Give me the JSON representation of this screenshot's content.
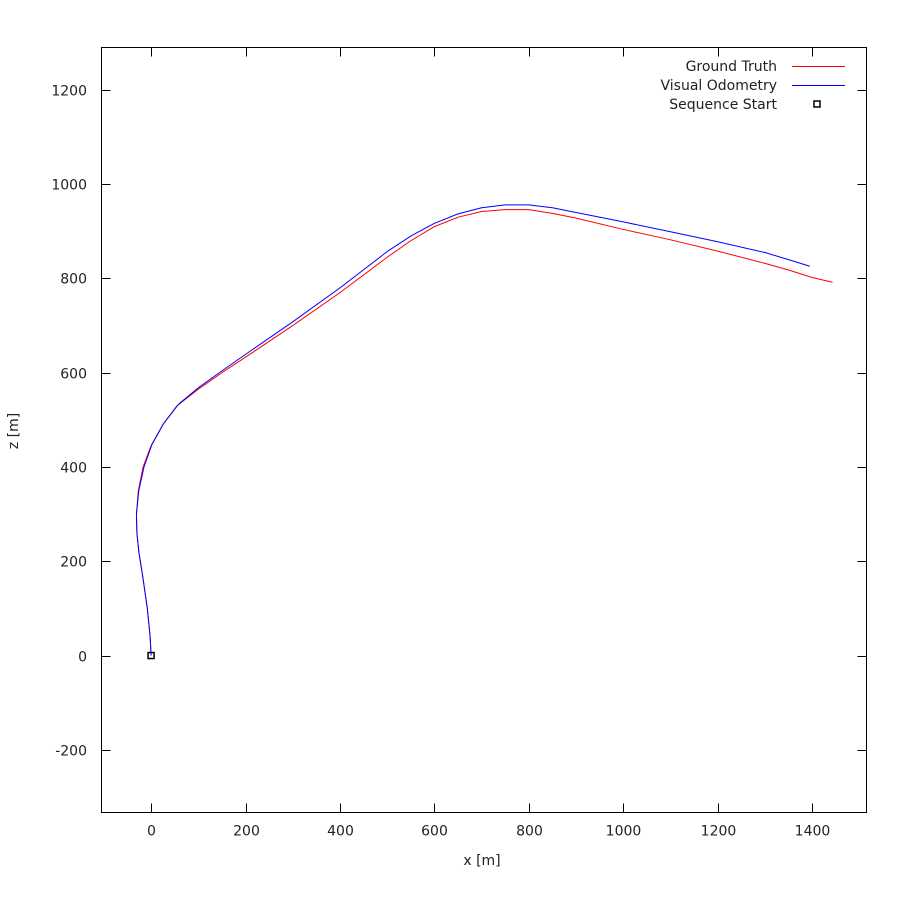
{
  "chart_data": {
    "type": "line",
    "title": "",
    "xlabel": "x [m]",
    "ylabel": "z [m]",
    "xlim": [
      -105,
      1515
    ],
    "ylim": [
      -333,
      1290
    ],
    "x_ticks": [
      0,
      200,
      400,
      600,
      800,
      1000,
      1200,
      1400
    ],
    "y_ticks": [
      -200,
      0,
      200,
      400,
      600,
      800,
      1000,
      1200
    ],
    "grid": false,
    "legend_position": "top-right",
    "series": [
      {
        "name": "Ground Truth",
        "color": "#ff0000",
        "points": [
          [
            0,
            0
          ],
          [
            -2,
            40
          ],
          [
            -8,
            100
          ],
          [
            -18,
            170
          ],
          [
            -26,
            220
          ],
          [
            -30,
            260
          ],
          [
            -31,
            300
          ],
          [
            -27,
            350
          ],
          [
            -17,
            400
          ],
          [
            0,
            445
          ],
          [
            25,
            490
          ],
          [
            55,
            530
          ],
          [
            100,
            565
          ],
          [
            150,
            600
          ],
          [
            200,
            633
          ],
          [
            300,
            700
          ],
          [
            400,
            770
          ],
          [
            500,
            845
          ],
          [
            550,
            880
          ],
          [
            600,
            910
          ],
          [
            650,
            930
          ],
          [
            700,
            942
          ],
          [
            750,
            946
          ],
          [
            800,
            946
          ],
          [
            850,
            938
          ],
          [
            900,
            928
          ],
          [
            1000,
            904
          ],
          [
            1100,
            882
          ],
          [
            1200,
            858
          ],
          [
            1300,
            832
          ],
          [
            1350,
            818
          ],
          [
            1400,
            802
          ],
          [
            1443,
            792
          ]
        ]
      },
      {
        "name": "Visual Odometry",
        "color": "#0000ff",
        "points": [
          [
            0,
            0
          ],
          [
            -2,
            40
          ],
          [
            -8,
            100
          ],
          [
            -18,
            170
          ],
          [
            -26,
            220
          ],
          [
            -30,
            260
          ],
          [
            -31,
            300
          ],
          [
            -26,
            350
          ],
          [
            -15,
            400
          ],
          [
            2,
            448
          ],
          [
            27,
            493
          ],
          [
            58,
            533
          ],
          [
            100,
            568
          ],
          [
            150,
            604
          ],
          [
            200,
            639
          ],
          [
            300,
            708
          ],
          [
            400,
            780
          ],
          [
            500,
            857
          ],
          [
            550,
            890
          ],
          [
            600,
            917
          ],
          [
            650,
            937
          ],
          [
            700,
            950
          ],
          [
            750,
            956
          ],
          [
            800,
            956
          ],
          [
            850,
            950
          ],
          [
            900,
            940
          ],
          [
            1000,
            920
          ],
          [
            1100,
            899
          ],
          [
            1200,
            878
          ],
          [
            1300,
            855
          ],
          [
            1350,
            840
          ],
          [
            1395,
            826
          ]
        ]
      }
    ],
    "markers": [
      {
        "name": "Sequence Start",
        "x": 0,
        "y": 0,
        "shape": "square-outline",
        "color": "#000000"
      }
    ],
    "legend": {
      "items": [
        {
          "label": "Ground Truth",
          "kind": "line",
          "color": "#ff0000"
        },
        {
          "label": "Visual Odometry",
          "kind": "line",
          "color": "#0000ff"
        },
        {
          "label": "Sequence Start",
          "kind": "square-outline",
          "color": "#000000"
        }
      ]
    }
  }
}
